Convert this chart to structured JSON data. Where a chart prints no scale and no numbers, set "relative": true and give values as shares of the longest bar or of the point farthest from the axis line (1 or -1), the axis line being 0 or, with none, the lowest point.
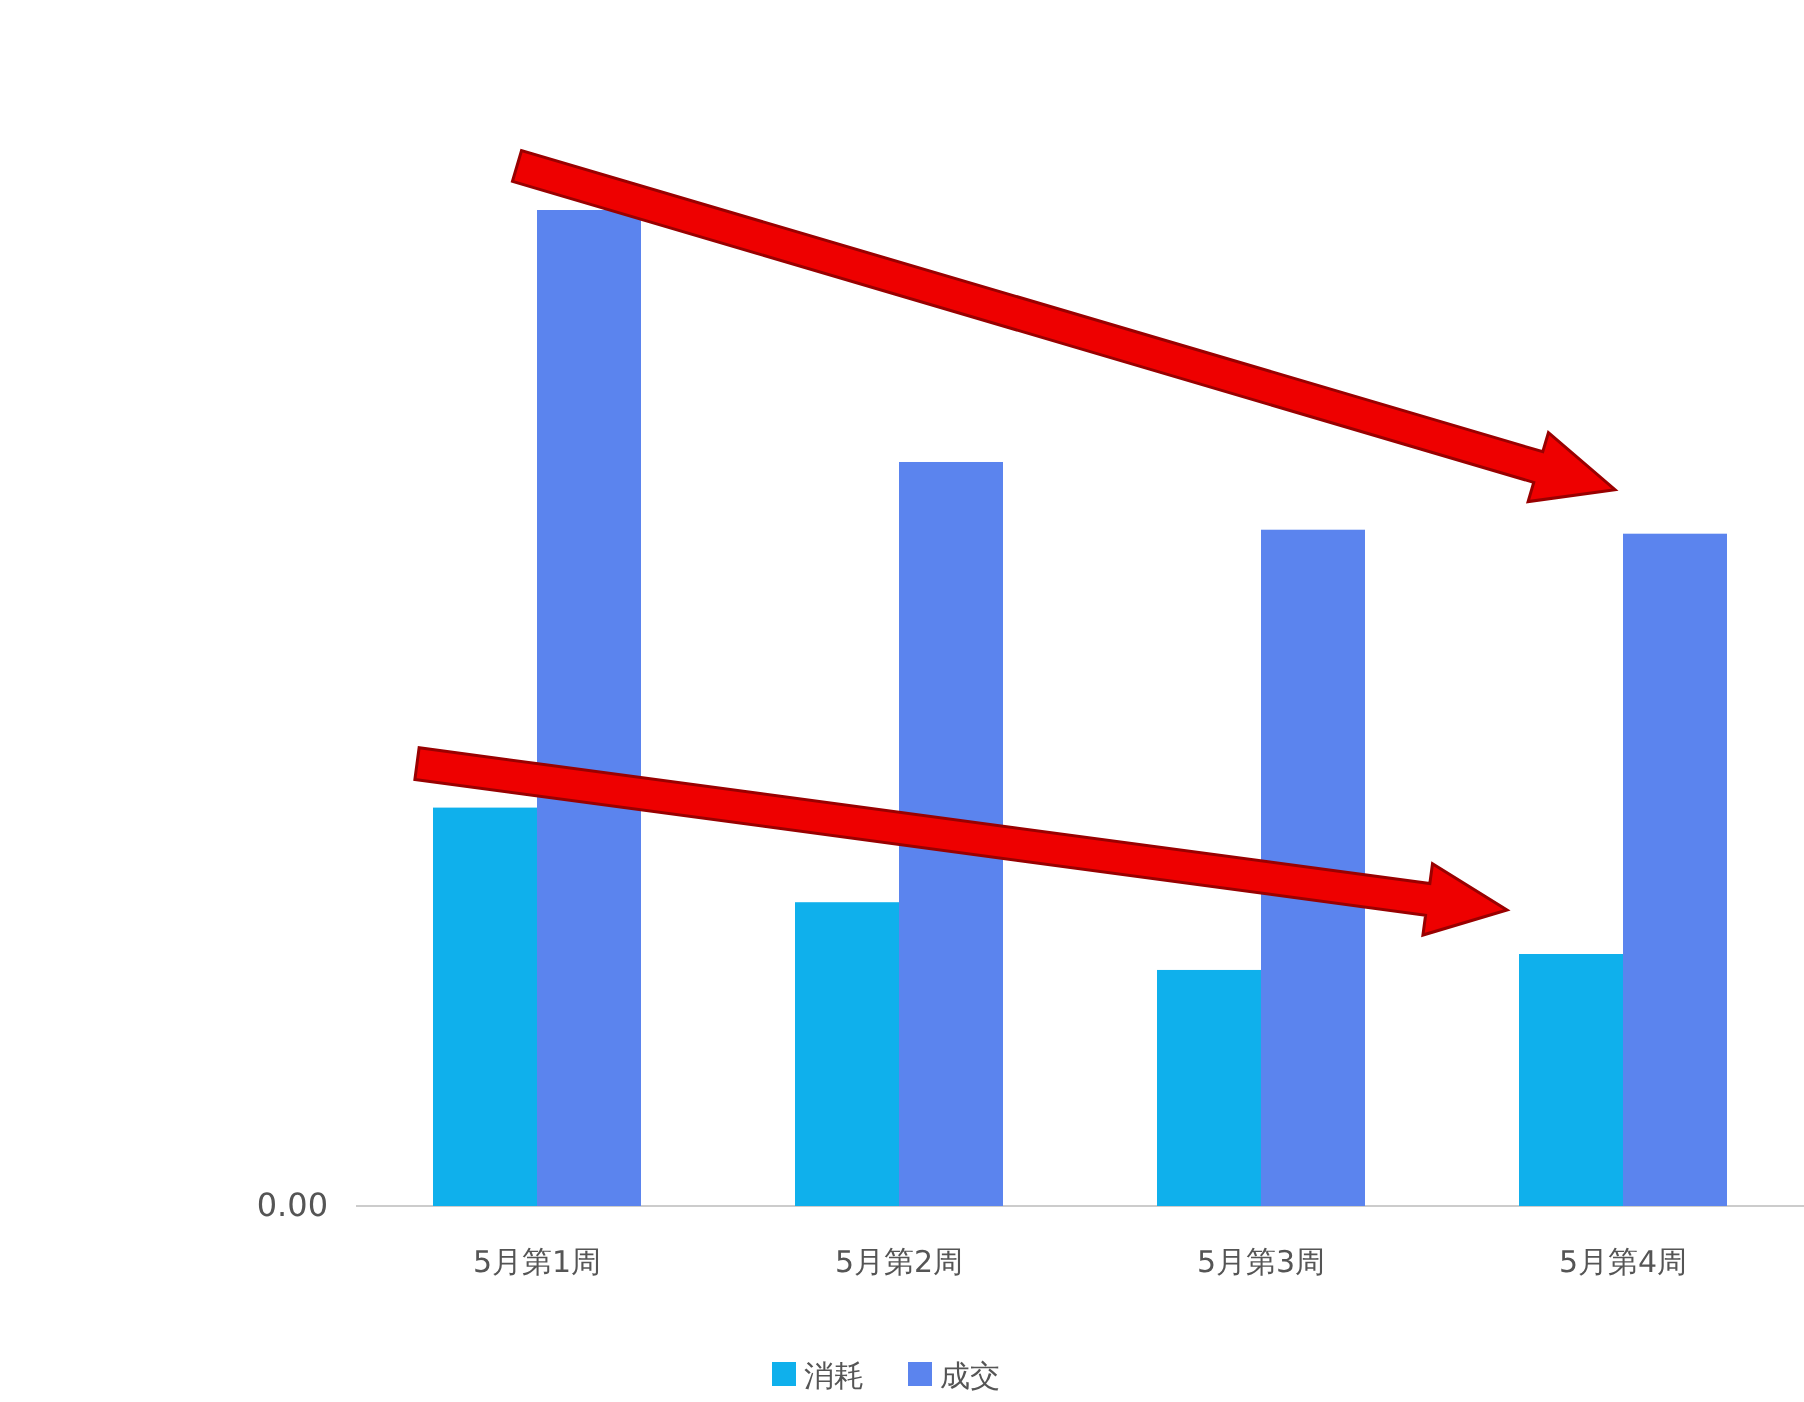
{
  "chart_data": {
    "type": "bar",
    "relative": true,
    "categories": [
      "5月第1周",
      "5月第2周",
      "5月第3周",
      "5月第4周"
    ],
    "series": [
      {
        "name": "消耗",
        "color": "#0fb0ec",
        "values": [
          0.4,
          0.305,
          0.237,
          0.253
        ]
      },
      {
        "name": "成交",
        "color": "#5b84ee",
        "values": [
          1,
          0.747,
          0.679,
          0.675
        ]
      }
    ],
    "annotations": [
      "0.00"
    ],
    "legend": "bottom"
  }
}
